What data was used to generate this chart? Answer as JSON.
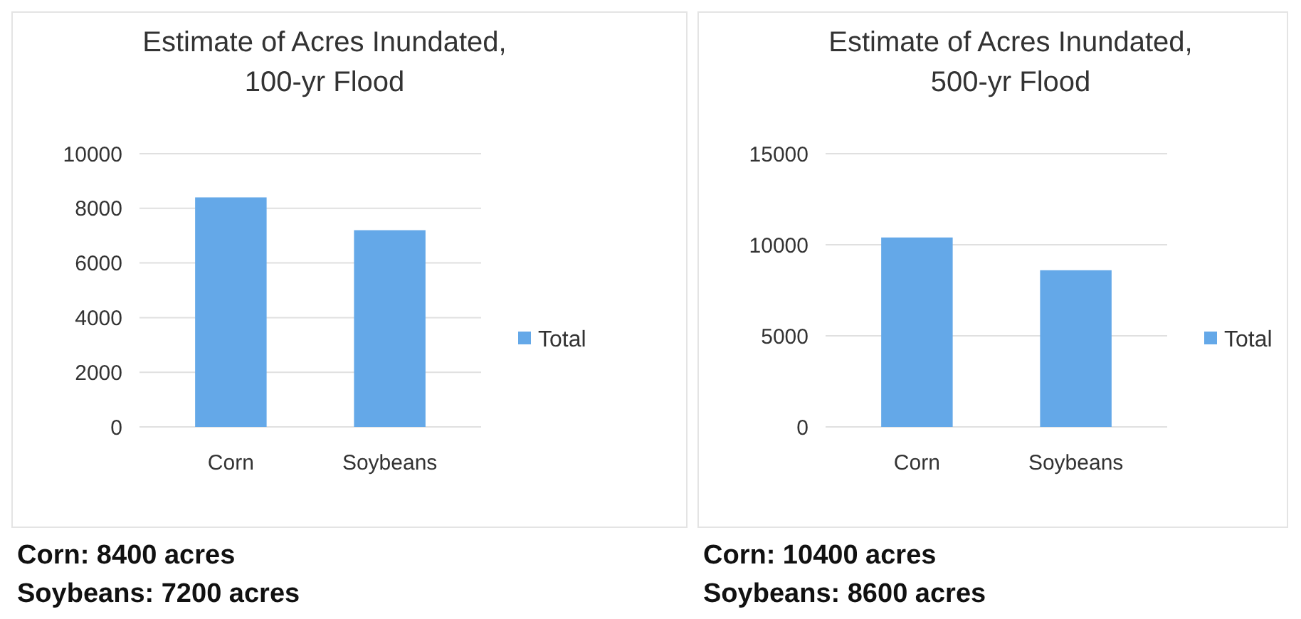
{
  "chart_data": [
    {
      "type": "bar",
      "title": "Estimate of Acres Inundated, 100-yr Flood",
      "categories": [
        "Corn",
        "Soybeans"
      ],
      "series": [
        {
          "name": "Total",
          "color": "#64a8e8",
          "values": [
            8400,
            7200
          ]
        }
      ],
      "ylim": [
        0,
        10000
      ],
      "yticks": [
        0,
        2000,
        4000,
        6000,
        8000,
        10000
      ],
      "grid": "y",
      "legend": "right",
      "annotations": [
        "Corn: 8400 acres",
        "Soybeans: 7200 acres"
      ]
    },
    {
      "type": "bar",
      "title": "Estimate of Acres Inundated, 500-yr Flood",
      "categories": [
        "Corn",
        "Soybeans"
      ],
      "series": [
        {
          "name": "Total",
          "color": "#64a8e8",
          "values": [
            10400,
            8600
          ]
        }
      ],
      "ylim": [
        0,
        15000
      ],
      "yticks": [
        0,
        5000,
        10000,
        15000
      ],
      "grid": "y",
      "legend": "right",
      "annotations": [
        "Corn: 10400 acres",
        "Soybeans: 8600 acres"
      ]
    }
  ]
}
